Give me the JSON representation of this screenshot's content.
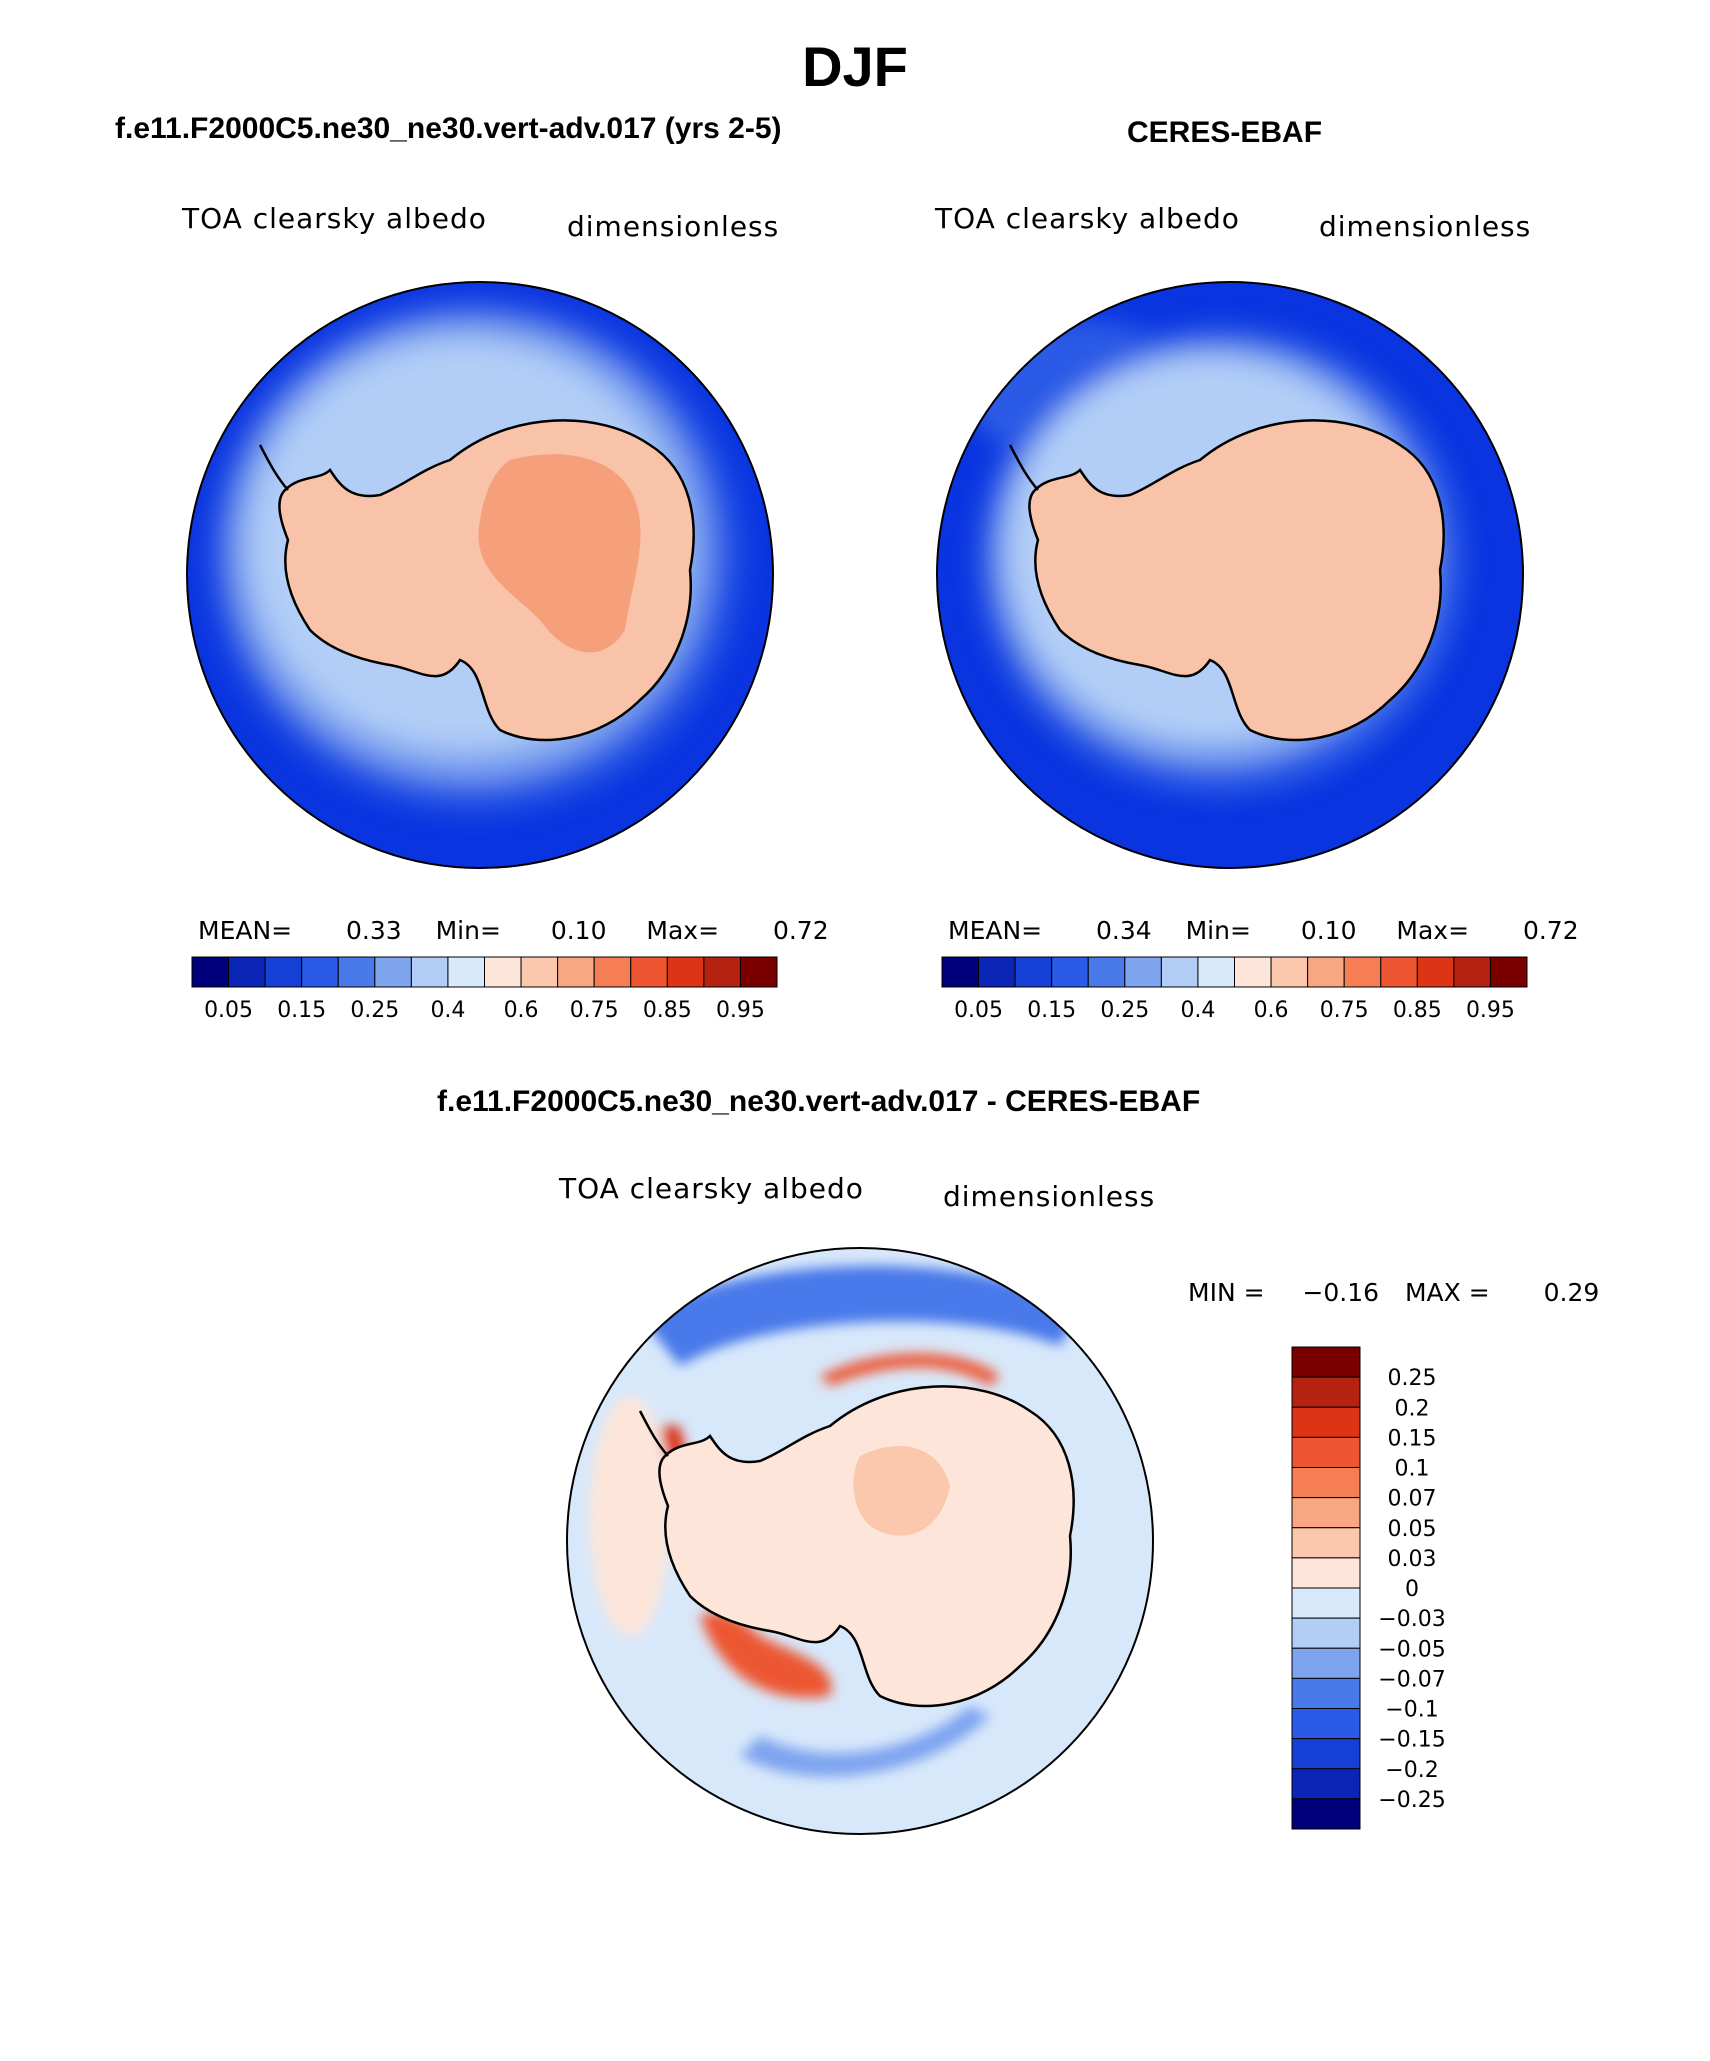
{
  "season": "DJF",
  "panels": [
    {
      "title": "f.e11.F2000C5.ne30_ne30.vert-adv.017 (yrs 2-5)",
      "variable": "TOA clearsky albedo",
      "units": "dimensionless",
      "stats": {
        "mean_label": "MEAN=",
        "mean": "0.33",
        "min_label": "Min=",
        "min": "0.10",
        "max_label": "Max=",
        "max": "0.72"
      }
    },
    {
      "title": "CERES-EBAF",
      "variable": "TOA clearsky albedo",
      "units": "dimensionless",
      "stats": {
        "mean_label": "MEAN=",
        "mean": "0.34",
        "min_label": "Min=",
        "min": "0.10",
        "max_label": "Max=",
        "max": "0.72"
      }
    },
    {
      "title": "f.e11.F2000C5.ne30_ne30.vert-adv.017 - CERES-EBAF",
      "variable": "TOA clearsky albedo",
      "units": "dimensionless",
      "stats": {
        "min_label": "MIN =",
        "min": "−0.16",
        "max_label": "MAX =",
        "max": "0.29"
      }
    }
  ],
  "colorbar_abs": {
    "labels": [
      "0.05",
      "0.15",
      "0.25",
      "0.4",
      "0.6",
      "0.75",
      "0.85",
      "0.95"
    ],
    "colors": [
      "#00007a",
      "#0a24b5",
      "#1540d6",
      "#2a5ae6",
      "#4a79ea",
      "#7ea4f0",
      "#b2cef7",
      "#d9e9fc",
      "#fde6d9",
      "#fbc7ad",
      "#f9a683",
      "#f67e55",
      "#ed5630",
      "#dc3415",
      "#b52210",
      "#7a0000"
    ]
  },
  "colorbar_diff": {
    "labels": [
      "0.25",
      "0.2",
      "0.15",
      "0.1",
      "0.07",
      "0.05",
      "0.03",
      "0",
      "−0.03",
      "−0.05",
      "−0.07",
      "−0.1",
      "−0.15",
      "−0.2",
      "−0.25"
    ],
    "colors": [
      "#7a0000",
      "#b52210",
      "#dc3415",
      "#ed5630",
      "#f67e55",
      "#f9a683",
      "#fbc7ad",
      "#fde6d9",
      "#d9e9fc",
      "#b2cef7",
      "#7ea4f0",
      "#4a79ea",
      "#2a5ae6",
      "#1540d6",
      "#0a24b5",
      "#00007a"
    ]
  },
  "colors": {
    "ocean_abs": "#0a34e0",
    "ice_abs": "#f8c3a8",
    "ice_high": "#f6a07b",
    "diff_background": "#d8e8fb"
  }
}
